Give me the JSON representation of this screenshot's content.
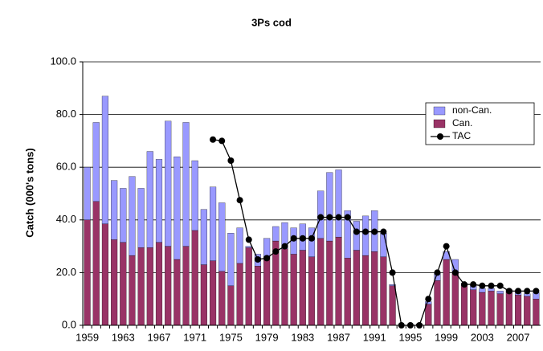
{
  "chart_data": {
    "type": "bar",
    "title": "3Ps cod",
    "y_label": "Catch (000's tons)",
    "categories": [
      "1959",
      null,
      null,
      null,
      "1963",
      null,
      null,
      null,
      "1967",
      null,
      null,
      null,
      "1971",
      null,
      null,
      null,
      "1975",
      null,
      null,
      null,
      "1979",
      null,
      null,
      null,
      "1983",
      null,
      null,
      null,
      "1987",
      null,
      null,
      null,
      "1991",
      null,
      null,
      null,
      "1995",
      null,
      null,
      null,
      "1999",
      null,
      null,
      null,
      "2003",
      null,
      null,
      null,
      "2007",
      null,
      null
    ],
    "series": [
      {
        "name": "non-Can.",
        "color": "#9999ff",
        "kind": "bar",
        "values": [
          20,
          30,
          48.5,
          22.5,
          20.5,
          30,
          22.5,
          36.5,
          31.5,
          47.5,
          39,
          47,
          26.5,
          21,
          28,
          26,
          20,
          13.5,
          0.5,
          4.5,
          7,
          5.5,
          10,
          10,
          10,
          11,
          18,
          26,
          25.5,
          18,
          11,
          15,
          15.5,
          9,
          0.5,
          0,
          0,
          0,
          1,
          3,
          3,
          5,
          1,
          1.5,
          1.5,
          1,
          1,
          1,
          1.5,
          1,
          2.5
        ]
      },
      {
        "name": "Can.",
        "color": "#993366",
        "kind": "bar",
        "values": [
          40,
          47,
          38.5,
          32.5,
          31.5,
          26.5,
          29.5,
          29.5,
          31.5,
          30,
          25,
          30,
          36,
          23,
          24.5,
          20.5,
          15,
          23.5,
          29.5,
          22.5,
          26,
          32,
          29,
          27,
          28.5,
          26,
          33,
          32,
          33.5,
          25.5,
          28.5,
          26.5,
          28,
          26,
          15,
          0,
          0,
          0.5,
          8,
          17,
          25,
          20,
          15,
          13.5,
          12.5,
          13,
          12,
          12.5,
          11.5,
          11,
          10
        ]
      },
      {
        "name": "TAC",
        "color": "#000000",
        "kind": "line",
        "values": [
          null,
          null,
          null,
          null,
          null,
          null,
          null,
          null,
          null,
          null,
          null,
          null,
          null,
          null,
          70.5,
          70,
          62.5,
          47.5,
          32.5,
          25,
          25.5,
          28,
          30,
          33,
          33,
          33,
          41,
          41,
          41,
          41,
          35.5,
          35.5,
          35.5,
          35.5,
          20,
          0,
          0,
          0,
          10,
          20,
          30,
          20,
          15.5,
          15.5,
          15,
          15,
          15,
          13,
          13,
          13,
          13
        ]
      }
    ],
    "ylim": [
      0,
      100
    ],
    "yticks": [
      {
        "value": 0,
        "label": "0.0"
      },
      {
        "value": 20,
        "label": "20.0"
      },
      {
        "value": 40,
        "label": "40.0"
      },
      {
        "value": 60,
        "label": "60.0"
      },
      {
        "value": 80,
        "label": "80.0"
      },
      {
        "value": 100,
        "label": "100.0"
      }
    ],
    "grid": true,
    "legend": "upper right"
  }
}
